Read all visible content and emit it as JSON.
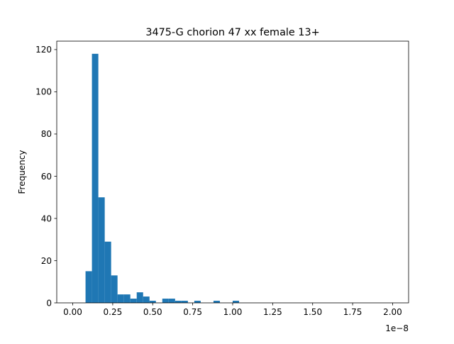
{
  "chart_data": {
    "type": "bar",
    "title": "3475-G chorion 47 xx female 13+",
    "xlabel": "",
    "ylabel": "Frequency",
    "x_offset_label": "1e−8",
    "x_scale": 1e-08,
    "xlim": [
      -0.1,
      2.1
    ],
    "ylim": [
      0,
      124
    ],
    "xticks": [
      0.0,
      0.25,
      0.5,
      0.75,
      1.0,
      1.25,
      1.5,
      1.75,
      2.0
    ],
    "xtick_labels": [
      "0.00",
      "0.25",
      "0.50",
      "0.75",
      "1.00",
      "1.25",
      "1.50",
      "1.75",
      "2.00"
    ],
    "yticks": [
      0,
      20,
      40,
      60,
      80,
      100,
      120
    ],
    "ytick_labels": [
      "0",
      "20",
      "40",
      "60",
      "80",
      "100",
      "120"
    ],
    "bin_width": 0.04,
    "bins": [
      {
        "x_start": 0.08,
        "count": 15
      },
      {
        "x_start": 0.12,
        "count": 118
      },
      {
        "x_start": 0.16,
        "count": 50
      },
      {
        "x_start": 0.2,
        "count": 29
      },
      {
        "x_start": 0.24,
        "count": 13
      },
      {
        "x_start": 0.28,
        "count": 4
      },
      {
        "x_start": 0.32,
        "count": 4
      },
      {
        "x_start": 0.36,
        "count": 2
      },
      {
        "x_start": 0.4,
        "count": 5
      },
      {
        "x_start": 0.44,
        "count": 3
      },
      {
        "x_start": 0.48,
        "count": 1
      },
      {
        "x_start": 0.56,
        "count": 2
      },
      {
        "x_start": 0.6,
        "count": 2
      },
      {
        "x_start": 0.64,
        "count": 1
      },
      {
        "x_start": 0.68,
        "count": 1
      },
      {
        "x_start": 0.76,
        "count": 1
      },
      {
        "x_start": 0.88,
        "count": 1
      },
      {
        "x_start": 1.0,
        "count": 1
      }
    ],
    "bar_color": "#1f77b4",
    "grid": false,
    "legend": "none"
  }
}
